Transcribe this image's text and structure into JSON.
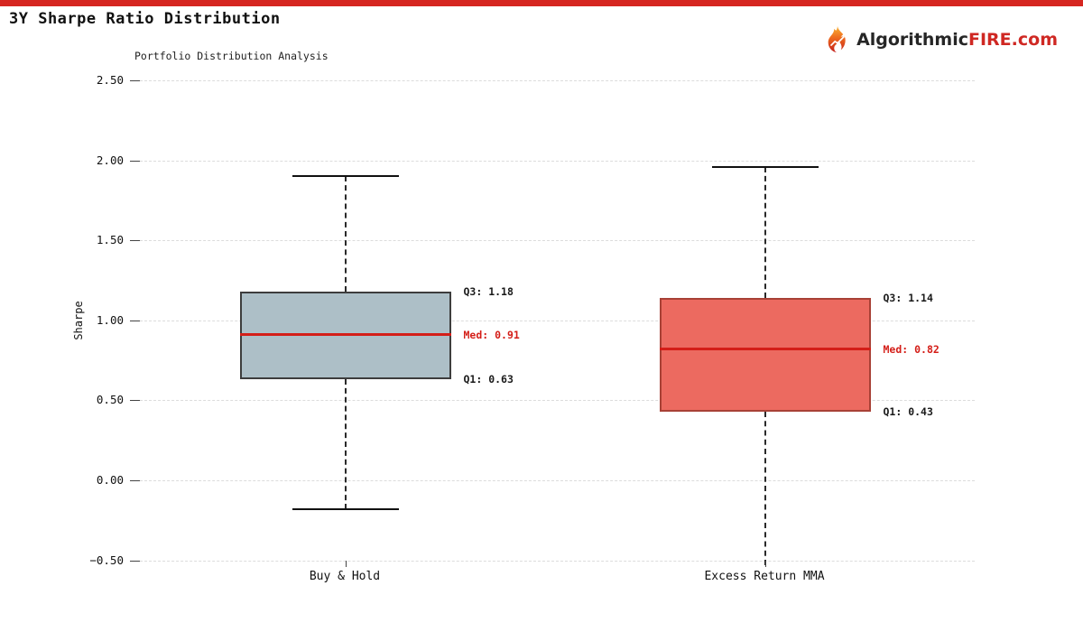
{
  "page": {
    "title": "3Y Sharpe Ratio Distribution",
    "accent_color": "#d62620",
    "logo": {
      "prefix": "Algorithmic",
      "suffix": "FIRE.com",
      "icon": "flame-icon"
    }
  },
  "chart_data": {
    "type": "box",
    "title": "Portfolio Distribution Analysis",
    "xlabel": "",
    "ylabel": "Sharpe",
    "ylim": [
      -0.55,
      2.55
    ],
    "grid": true,
    "ytick_values": [
      2.5,
      2.0,
      1.5,
      1.0,
      0.5,
      0.0,
      -0.5
    ],
    "ytick_labels": [
      "2.50",
      "2.00",
      "1.50",
      "1.00",
      "0.50",
      "0.00",
      "−0.50"
    ],
    "categories": [
      "Buy & Hold",
      "Excess Return MMA"
    ],
    "series": [
      {
        "name": "Buy & Hold",
        "q1": 0.63,
        "median": 0.91,
        "q3": 1.18,
        "whisker_high": 1.9,
        "whisker_low": -0.18,
        "whisker_low_cap": true,
        "box_color": "#adbfc7",
        "edge_color": "#3d3d3d",
        "median_color": "#d41e18",
        "labels": {
          "q3": "Q3: 1.18",
          "med": "Med: 0.91",
          "q1": "Q1: 0.63"
        }
      },
      {
        "name": "Excess Return MMA",
        "q1": 0.43,
        "median": 0.82,
        "q3": 1.14,
        "whisker_high": 1.96,
        "whisker_low": -0.53,
        "whisker_low_cap": false,
        "box_color": "#ec6a60",
        "edge_color": "#a84136",
        "median_color": "#d41e18",
        "labels": {
          "q3": "Q3: 1.14",
          "med": "Med: 0.82",
          "q1": "Q1: 0.43"
        }
      }
    ]
  }
}
